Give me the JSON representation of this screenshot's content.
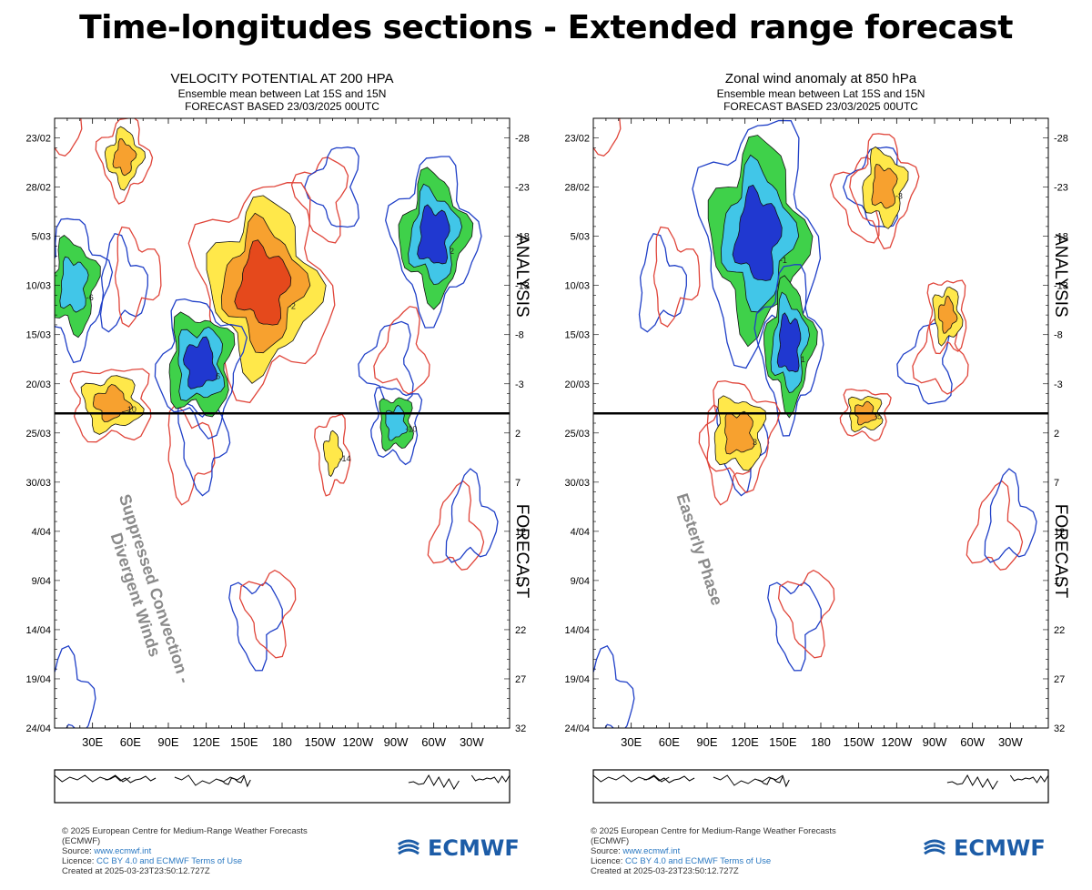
{
  "page": {
    "title": "Time-longitudes sections - Extended range forecast"
  },
  "colors": {
    "positive_contour": "#e0453a",
    "negative_contour": "#1f3fc7",
    "fill_yellow": "#ffe84a",
    "fill_orange": "#f7a12f",
    "fill_red": "#e5491c",
    "fill_green": "#3fd14a",
    "fill_cyan": "#41c6e8",
    "fill_blue": "#2038d0",
    "brand": "#1c5ca7"
  },
  "footer": {
    "copyright": "© 2025 European Centre for Medium-Range Weather Forecasts",
    "org": "(ECMWF)",
    "source_label": "Source:",
    "source_link": "www.ecmwf.int",
    "licence_label": "Licence:",
    "licence_link": "CC BY 4.0 and ECMWF Terms of Use",
    "created": "Created at 2025-03-23T23:50:12.727Z",
    "logo": "ECMWF"
  },
  "chart_data": [
    {
      "type": "heatmap",
      "title": "VELOCITY POTENTIAL AT 200 HPA",
      "subtitle_1": "Ensemble mean between  Lat 15S and 15N",
      "subtitle_2": "FORECAST  BASED 23/03/2025 00UTC",
      "x_tick_labels": [
        "30E",
        "60E",
        "90E",
        "120E",
        "150E",
        "180",
        "150W",
        "120W",
        "90W",
        "60W",
        "30W"
      ],
      "x_ticks_deg": [
        30,
        60,
        90,
        120,
        150,
        180,
        210,
        240,
        270,
        300,
        330
      ],
      "xlim_deg": [
        0,
        360
      ],
      "y_tick_labels": [
        "23/02",
        "28/02",
        "5/03",
        "10/03",
        "15/03",
        "20/03",
        "25/03",
        "30/03",
        "4/04",
        "9/04",
        "14/04",
        "19/04",
        "24/04"
      ],
      "y_right_tick_labels": [
        "-28",
        "-23",
        "-18",
        "-13",
        "-8",
        "-3",
        "2",
        "7",
        "12",
        "17",
        "22",
        "27",
        "32"
      ],
      "ylim_days": [
        -30,
        32
      ],
      "initial_day": 0,
      "right_labels": {
        "analysis": "ANALYSIS",
        "forecast": "FORECAST"
      },
      "annotation": {
        "line1": "Suppressed Convection -",
        "line2": "Divergent Winds"
      },
      "contour_interval": 2,
      "features": [
        {
          "sign": "+",
          "lon": 165,
          "day": -13,
          "peak": 12,
          "radius_lon": 40,
          "radius_day": 8
        },
        {
          "sign": "-",
          "lon": 300,
          "day": -18,
          "peak": -10,
          "radius_lon": 25,
          "radius_day": 6
        },
        {
          "sign": "-",
          "lon": 15,
          "day": -13,
          "peak": -6,
          "radius_lon": 20,
          "radius_day": 5
        },
        {
          "sign": "-",
          "lon": 115,
          "day": -5,
          "peak": -14,
          "radius_lon": 25,
          "radius_day": 5
        },
        {
          "sign": "-",
          "lon": 270,
          "day": 1,
          "peak": -6,
          "radius_lon": 15,
          "radius_day": 3
        },
        {
          "sign": "+",
          "lon": 45,
          "day": -1,
          "peak": 6,
          "radius_lon": 25,
          "radius_day": 3
        },
        {
          "sign": "+",
          "lon": 220,
          "day": 4,
          "peak": 4,
          "radius_lon": 10,
          "radius_day": 3
        },
        {
          "sign": "+",
          "lon": 55,
          "day": -26,
          "peak": 6,
          "radius_lon": 15,
          "radius_day": 3
        }
      ],
      "contour_labels": [
        "-2",
        "2",
        "-6",
        "6",
        "-10",
        "10",
        "-14"
      ]
    },
    {
      "type": "heatmap",
      "title": "Zonal wind anomaly at 850 hPa",
      "subtitle_1": "Ensemble mean between  Lat 15S and 15N",
      "subtitle_2": "FORECAST  BASED 23/03/2025 00UTC",
      "x_tick_labels": [
        "30E",
        "60E",
        "90E",
        "120E",
        "150E",
        "180",
        "150W",
        "120W",
        "90W",
        "60W",
        "30W"
      ],
      "x_ticks_deg": [
        30,
        60,
        90,
        120,
        150,
        180,
        210,
        240,
        270,
        300,
        330
      ],
      "xlim_deg": [
        0,
        360
      ],
      "y_tick_labels": [
        "23/02",
        "28/02",
        "5/03",
        "10/03",
        "15/03",
        "20/03",
        "25/03",
        "30/03",
        "4/04",
        "9/04",
        "14/04",
        "19/04",
        "24/04"
      ],
      "y_right_tick_labels": [
        "-28",
        "-23",
        "-18",
        "-13",
        "-8",
        "-3",
        "2",
        "7",
        "12",
        "17",
        "22",
        "27",
        "32"
      ],
      "ylim_days": [
        -30,
        32
      ],
      "initial_day": 0,
      "right_labels": {
        "analysis": "ANALYSIS",
        "forecast": "FORECAST"
      },
      "annotation": {
        "line1": "Easterly Phase",
        "line2": ""
      },
      "contour_interval": 1,
      "features": [
        {
          "sign": "-",
          "lon": 130,
          "day": -18,
          "peak": -5,
          "radius_lon": 35,
          "radius_day": 9
        },
        {
          "sign": "-",
          "lon": 155,
          "day": -7,
          "peak": -5,
          "radius_lon": 18,
          "radius_day": 6
        },
        {
          "sign": "+",
          "lon": 230,
          "day": -23,
          "peak": 3,
          "radius_lon": 18,
          "radius_day": 4
        },
        {
          "sign": "+",
          "lon": 115,
          "day": 2,
          "peak": 4,
          "radius_lon": 22,
          "radius_day": 4
        },
        {
          "sign": "+",
          "lon": 215,
          "day": 0,
          "peak": 3,
          "radius_lon": 15,
          "radius_day": 2
        },
        {
          "sign": "+",
          "lon": 280,
          "day": -10,
          "peak": 3,
          "radius_lon": 12,
          "radius_day": 3
        }
      ],
      "contour_labels": [
        "-1",
        "1",
        "-3",
        "3",
        "-5"
      ]
    }
  ]
}
